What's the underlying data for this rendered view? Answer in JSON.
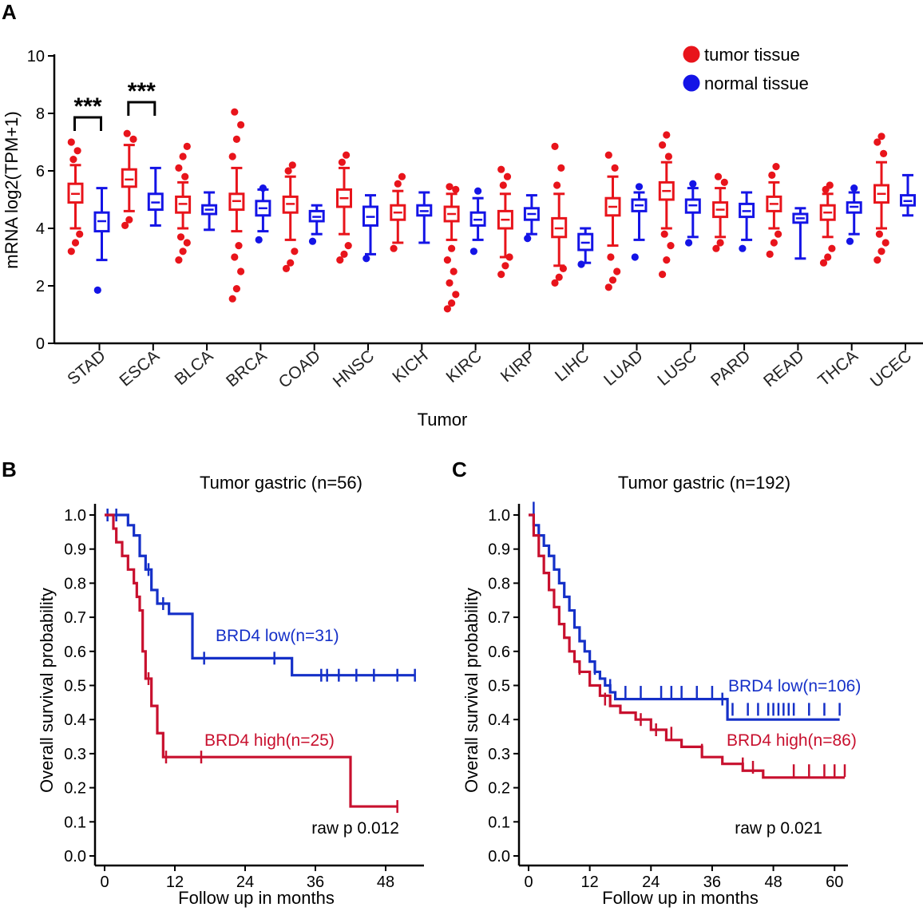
{
  "panel_letters": [
    "A",
    "B",
    "C"
  ],
  "colors": {
    "tumor": "#e8141b",
    "normal": "#1414e6",
    "km_high": "#c8102e",
    "km_low": "#1530c8",
    "axis": "#000000"
  },
  "chart_data": [
    {
      "type": "box",
      "panel": "A",
      "ylabel": "mRNA log2(TPM+1)",
      "xlabel": "Tumor",
      "ylim": [
        0,
        10
      ],
      "yticks": [
        0,
        2,
        4,
        6,
        8,
        10
      ],
      "legend": [
        {
          "name": "tumor tissue",
          "color": "#e8141b"
        },
        {
          "name": "normal tissue",
          "color": "#1414e6"
        }
      ],
      "categories": [
        "STAD",
        "ESCA",
        "BLCA",
        "BRCA",
        "COAD",
        "HNSC",
        "KICH",
        "KIRC",
        "KIRP",
        "LIHC",
        "LUAD",
        "LUSC",
        "PARD",
        "READ",
        "THCA",
        "UCEC"
      ],
      "significance": [
        {
          "category": "STAD",
          "label": "***"
        },
        {
          "category": "ESCA",
          "label": "***"
        }
      ],
      "series": [
        {
          "name": "tumor tissue",
          "boxes": [
            {
              "median": 5.2,
              "q1": 4.9,
              "q3": 5.55,
              "whislo": 4.0,
              "whishi": 6.2,
              "outliers": [
                3.2,
                3.5,
                3.8,
                6.4,
                6.7,
                7.0
              ]
            },
            {
              "median": 5.7,
              "q1": 5.45,
              "q3": 6.05,
              "whislo": 4.6,
              "whishi": 6.9,
              "outliers": [
                4.1,
                4.3,
                7.1,
                7.3
              ]
            },
            {
              "median": 4.85,
              "q1": 4.55,
              "q3": 5.1,
              "whislo": 4.0,
              "whishi": 5.6,
              "outliers": [
                2.9,
                3.2,
                3.5,
                3.7,
                5.8,
                6.1,
                6.5,
                6.85
              ]
            },
            {
              "median": 4.95,
              "q1": 4.65,
              "q3": 5.2,
              "whislo": 3.9,
              "whishi": 6.1,
              "outliers": [
                1.55,
                1.9,
                2.5,
                3.0,
                3.4,
                6.5,
                7.1,
                7.6,
                8.05
              ]
            },
            {
              "median": 4.85,
              "q1": 4.55,
              "q3": 5.1,
              "whislo": 3.6,
              "whishi": 5.8,
              "outliers": [
                2.6,
                2.8,
                3.2,
                6.0,
                6.2
              ]
            },
            {
              "median": 5.05,
              "q1": 4.75,
              "q3": 5.35,
              "whislo": 3.8,
              "whishi": 6.1,
              "outliers": [
                2.9,
                3.1,
                3.4,
                6.3,
                6.55
              ]
            },
            {
              "median": 4.55,
              "q1": 4.3,
              "q3": 4.8,
              "whislo": 3.5,
              "whishi": 5.3,
              "outliers": [
                3.3,
                5.55,
                5.8
              ]
            },
            {
              "median": 4.5,
              "q1": 4.25,
              "q3": 4.75,
              "whislo": 3.6,
              "whishi": 5.2,
              "outliers": [
                1.2,
                1.4,
                1.7,
                2.1,
                2.5,
                2.9,
                3.3,
                5.35,
                5.45
              ]
            },
            {
              "median": 4.3,
              "q1": 4.0,
              "q3": 4.6,
              "whislo": 3.0,
              "whishi": 5.2,
              "outliers": [
                2.4,
                2.7,
                3.0,
                5.5,
                5.8,
                6.05
              ]
            },
            {
              "median": 4.0,
              "q1": 3.7,
              "q3": 4.35,
              "whislo": 2.7,
              "whishi": 5.2,
              "outliers": [
                2.1,
                2.3,
                2.6,
                5.5,
                6.1,
                6.85
              ]
            },
            {
              "median": 4.75,
              "q1": 4.45,
              "q3": 5.05,
              "whislo": 3.4,
              "whishi": 5.8,
              "outliers": [
                1.95,
                2.2,
                2.5,
                3.0,
                6.1,
                6.55
              ]
            },
            {
              "median": 5.3,
              "q1": 5.0,
              "q3": 5.6,
              "whislo": 4.0,
              "whishi": 6.3,
              "outliers": [
                2.4,
                2.9,
                3.4,
                3.8,
                6.5,
                6.9,
                7.25
              ]
            },
            {
              "median": 4.65,
              "q1": 4.4,
              "q3": 4.9,
              "whislo": 3.7,
              "whishi": 5.4,
              "outliers": [
                3.3,
                3.5,
                5.6,
                5.8
              ]
            },
            {
              "median": 4.85,
              "q1": 4.6,
              "q3": 5.1,
              "whislo": 4.0,
              "whishi": 5.6,
              "outliers": [
                3.1,
                3.5,
                3.8,
                5.85,
                6.15
              ]
            },
            {
              "median": 4.55,
              "q1": 4.3,
              "q3": 4.8,
              "whislo": 3.7,
              "whishi": 5.2,
              "outliers": [
                2.8,
                3.0,
                3.3,
                5.35,
                5.5
              ]
            },
            {
              "median": 5.2,
              "q1": 4.9,
              "q3": 5.5,
              "whislo": 4.0,
              "whishi": 6.3,
              "outliers": [
                2.9,
                3.2,
                3.5,
                3.8,
                6.6,
                7.0,
                7.2
              ]
            }
          ]
        },
        {
          "name": "normal tissue",
          "boxes": [
            {
              "median": 4.25,
              "q1": 3.9,
              "q3": 4.55,
              "whislo": 2.9,
              "whishi": 5.4,
              "outliers": [
                1.85
              ]
            },
            {
              "median": 4.9,
              "q1": 4.65,
              "q3": 5.2,
              "whislo": 4.1,
              "whishi": 6.1,
              "outliers": []
            },
            {
              "median": 4.65,
              "q1": 4.5,
              "q3": 4.8,
              "whislo": 3.95,
              "whishi": 5.25,
              "outliers": []
            },
            {
              "median": 4.7,
              "q1": 4.45,
              "q3": 4.95,
              "whislo": 3.9,
              "whishi": 5.35,
              "outliers": [
                3.6,
                5.4
              ]
            },
            {
              "median": 4.4,
              "q1": 4.25,
              "q3": 4.6,
              "whislo": 3.8,
              "whishi": 4.8,
              "outliers": [
                3.55
              ]
            },
            {
              "median": 4.4,
              "q1": 4.1,
              "q3": 4.75,
              "whislo": 3.1,
              "whishi": 5.15,
              "outliers": [
                2.95
              ]
            },
            {
              "median": 4.6,
              "q1": 4.45,
              "q3": 4.8,
              "whislo": 3.5,
              "whishi": 5.25,
              "outliers": []
            },
            {
              "median": 4.3,
              "q1": 4.1,
              "q3": 4.55,
              "whislo": 3.6,
              "whishi": 5.05,
              "outliers": [
                3.2,
                5.3
              ]
            },
            {
              "median": 4.5,
              "q1": 4.3,
              "q3": 4.7,
              "whislo": 3.8,
              "whishi": 5.15,
              "outliers": [
                3.65
              ]
            },
            {
              "median": 3.5,
              "q1": 3.25,
              "q3": 3.8,
              "whislo": 2.8,
              "whishi": 4.0,
              "outliers": [
                2.75
              ]
            },
            {
              "median": 4.8,
              "q1": 4.6,
              "q3": 5.0,
              "whislo": 3.6,
              "whishi": 5.25,
              "outliers": [
                3.0,
                5.45
              ]
            },
            {
              "median": 4.8,
              "q1": 4.55,
              "q3": 5.0,
              "whislo": 3.7,
              "whishi": 5.4,
              "outliers": [
                3.5,
                5.55
              ]
            },
            {
              "median": 4.6,
              "q1": 4.4,
              "q3": 4.85,
              "whislo": 3.6,
              "whishi": 5.25,
              "outliers": [
                3.3
              ]
            },
            {
              "median": 4.35,
              "q1": 4.2,
              "q3": 4.5,
              "whislo": 2.95,
              "whishi": 4.7,
              "outliers": []
            },
            {
              "median": 4.75,
              "q1": 4.55,
              "q3": 4.9,
              "whislo": 3.8,
              "whishi": 5.25,
              "outliers": [
                3.55,
                5.4
              ]
            },
            {
              "median": 4.95,
              "q1": 4.8,
              "q3": 5.15,
              "whislo": 4.45,
              "whishi": 5.85,
              "outliers": []
            }
          ]
        }
      ]
    },
    {
      "type": "line",
      "subtype": "kaplan-meier",
      "panel": "B",
      "title": "Tumor gastric (n=56)",
      "xlabel": "Follow up in months",
      "ylabel": "Overall survival probability",
      "xlim": [
        0,
        54
      ],
      "ylim": [
        0,
        1.0
      ],
      "xticks": [
        0,
        12,
        24,
        36,
        48
      ],
      "yticks": [
        0.0,
        0.1,
        0.2,
        0.3,
        0.4,
        0.5,
        0.6,
        0.7,
        0.8,
        0.9,
        1.0
      ],
      "annotation": "raw p 0.012",
      "series": [
        {
          "name": "BRD4 low(n=31)",
          "color": "#1530c8",
          "x": [
            0,
            4,
            5,
            6,
            7,
            8,
            9,
            11,
            15,
            32,
            53
          ],
          "y": [
            1.0,
            0.97,
            0.94,
            0.88,
            0.84,
            0.78,
            0.74,
            0.71,
            0.58,
            0.53,
            0.53
          ],
          "censors": [
            [
              0.5,
              1.0
            ],
            [
              2,
              1.0
            ],
            [
              7.5,
              0.84
            ],
            [
              10,
              0.74
            ],
            [
              17,
              0.58
            ],
            [
              29,
              0.58
            ],
            [
              37,
              0.53
            ],
            [
              38,
              0.53
            ],
            [
              40,
              0.53
            ],
            [
              43,
              0.53
            ],
            [
              46,
              0.53
            ],
            [
              50,
              0.53
            ],
            [
              53,
              0.53
            ]
          ]
        },
        {
          "name": "BRD4 high(n=25)",
          "color": "#c8102e",
          "x": [
            0,
            1.5,
            2,
            3,
            4,
            5,
            5.5,
            6,
            6.5,
            7,
            8,
            9,
            10,
            42,
            50
          ],
          "y": [
            1.0,
            0.96,
            0.92,
            0.88,
            0.84,
            0.8,
            0.76,
            0.72,
            0.6,
            0.52,
            0.44,
            0.36,
            0.29,
            0.145,
            0.145
          ],
          "censors": [
            [
              7.5,
              0.52
            ],
            [
              10.5,
              0.29
            ],
            [
              16.5,
              0.29
            ],
            [
              50,
              0.145
            ]
          ]
        }
      ]
    },
    {
      "type": "line",
      "subtype": "kaplan-meier",
      "panel": "C",
      "title": "Tumor gastric (n=192)",
      "xlabel": "Follow up in months",
      "ylabel": "Overall survival probability",
      "xlim": [
        0,
        62
      ],
      "ylim": [
        0,
        1.0
      ],
      "xticks": [
        0,
        12,
        24,
        36,
        48,
        60
      ],
      "yticks": [
        0.0,
        0.1,
        0.2,
        0.3,
        0.4,
        0.5,
        0.6,
        0.7,
        0.8,
        0.9,
        1.0
      ],
      "annotation": "raw p 0.021",
      "series": [
        {
          "name": "BRD4 low(n=106)",
          "color": "#1530c8",
          "x": [
            0,
            1,
            2,
            3,
            4,
            5,
            6,
            7,
            8,
            9,
            10,
            11,
            12,
            13,
            14,
            15,
            16,
            17,
            39,
            61
          ],
          "y": [
            1.0,
            0.97,
            0.94,
            0.91,
            0.88,
            0.84,
            0.8,
            0.76,
            0.72,
            0.67,
            0.63,
            0.6,
            0.57,
            0.54,
            0.52,
            0.5,
            0.48,
            0.46,
            0.4,
            0.4
          ],
          "censors": [
            [
              1,
              1.02
            ],
            [
              5,
              0.86
            ],
            [
              9,
              0.69
            ],
            [
              13,
              0.55
            ],
            [
              16,
              0.5
            ],
            [
              19,
              0.48
            ],
            [
              22,
              0.48
            ],
            [
              26,
              0.48
            ],
            [
              28,
              0.48
            ],
            [
              30,
              0.48
            ],
            [
              33,
              0.48
            ],
            [
              36,
              0.48
            ],
            [
              38,
              0.46
            ],
            [
              40,
              0.43
            ],
            [
              43,
              0.43
            ],
            [
              45,
              0.43
            ],
            [
              47,
              0.43
            ],
            [
              48,
              0.43
            ],
            [
              49,
              0.43
            ],
            [
              50,
              0.43
            ],
            [
              51,
              0.43
            ],
            [
              52,
              0.43
            ],
            [
              55,
              0.43
            ],
            [
              58,
              0.43
            ],
            [
              61,
              0.43
            ]
          ]
        },
        {
          "name": "BRD4 high(n=86)",
          "color": "#c8102e",
          "x": [
            0,
            1,
            2,
            3,
            4,
            5,
            6,
            7,
            8,
            9,
            10,
            12,
            14,
            16,
            18,
            21,
            24,
            27,
            30,
            34,
            38,
            42,
            46,
            62
          ],
          "y": [
            1.0,
            0.94,
            0.88,
            0.83,
            0.78,
            0.73,
            0.68,
            0.64,
            0.6,
            0.57,
            0.54,
            0.5,
            0.47,
            0.44,
            0.42,
            0.4,
            0.37,
            0.34,
            0.32,
            0.29,
            0.27,
            0.25,
            0.23,
            0.23
          ],
          "censors": [
            [
              3,
              0.86
            ],
            [
              6,
              0.7
            ],
            [
              10,
              0.55
            ],
            [
              15,
              0.46
            ],
            [
              22,
              0.4
            ],
            [
              25,
              0.37
            ],
            [
              28,
              0.36
            ],
            [
              34,
              0.31
            ],
            [
              42,
              0.27
            ],
            [
              44,
              0.26
            ],
            [
              52,
              0.25
            ],
            [
              55,
              0.25
            ],
            [
              58,
              0.25
            ],
            [
              60,
              0.25
            ],
            [
              62,
              0.25
            ]
          ]
        }
      ]
    }
  ]
}
